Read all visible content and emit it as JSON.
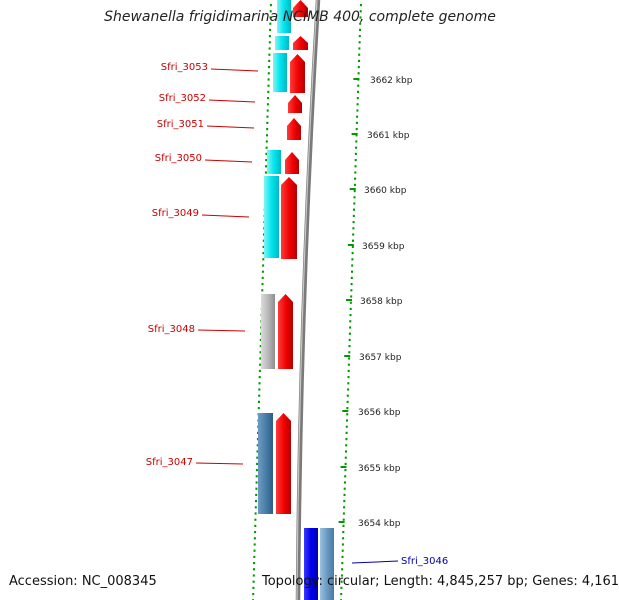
{
  "title": "Shewanella frigidimarina NCIMB 400, complete genome",
  "footer": {
    "accession": "Accession: NC_008345",
    "summary": "Topology: circular; Length: 4,845,257 bp; Genes: 4,161"
  },
  "colors": {
    "forward_cds": "#ff0000",
    "cyan_feature": "#00e5ee",
    "gray_feature": "#b0b0b0",
    "steel_feature": "#4a7fa8",
    "blue_cds": "#0000ee",
    "light_steel_feature": "#6a9ac2",
    "label_red": "#cc0000",
    "label_blue": "#0000aa",
    "tick_green": "#009900",
    "backbone": "#888888"
  },
  "scale_labels": [
    "3662 kbp",
    "3661 kbp",
    "3660 kbp",
    "3659 kbp",
    "3658 kbp",
    "3657 kbp",
    "3656 kbp",
    "3655 kbp",
    "3654 kbp"
  ],
  "gene_labels": [
    {
      "text": "Sfri_3053",
      "color": "red"
    },
    {
      "text": "Sfri_3052",
      "color": "red"
    },
    {
      "text": "Sfri_3051",
      "color": "red"
    },
    {
      "text": "Sfri_3050",
      "color": "red"
    },
    {
      "text": "Sfri_3049",
      "color": "red"
    },
    {
      "text": "Sfri_3048",
      "color": "red"
    },
    {
      "text": "Sfri_3047",
      "color": "red"
    },
    {
      "text": "Sfri_3046",
      "color": "blue"
    }
  ]
}
